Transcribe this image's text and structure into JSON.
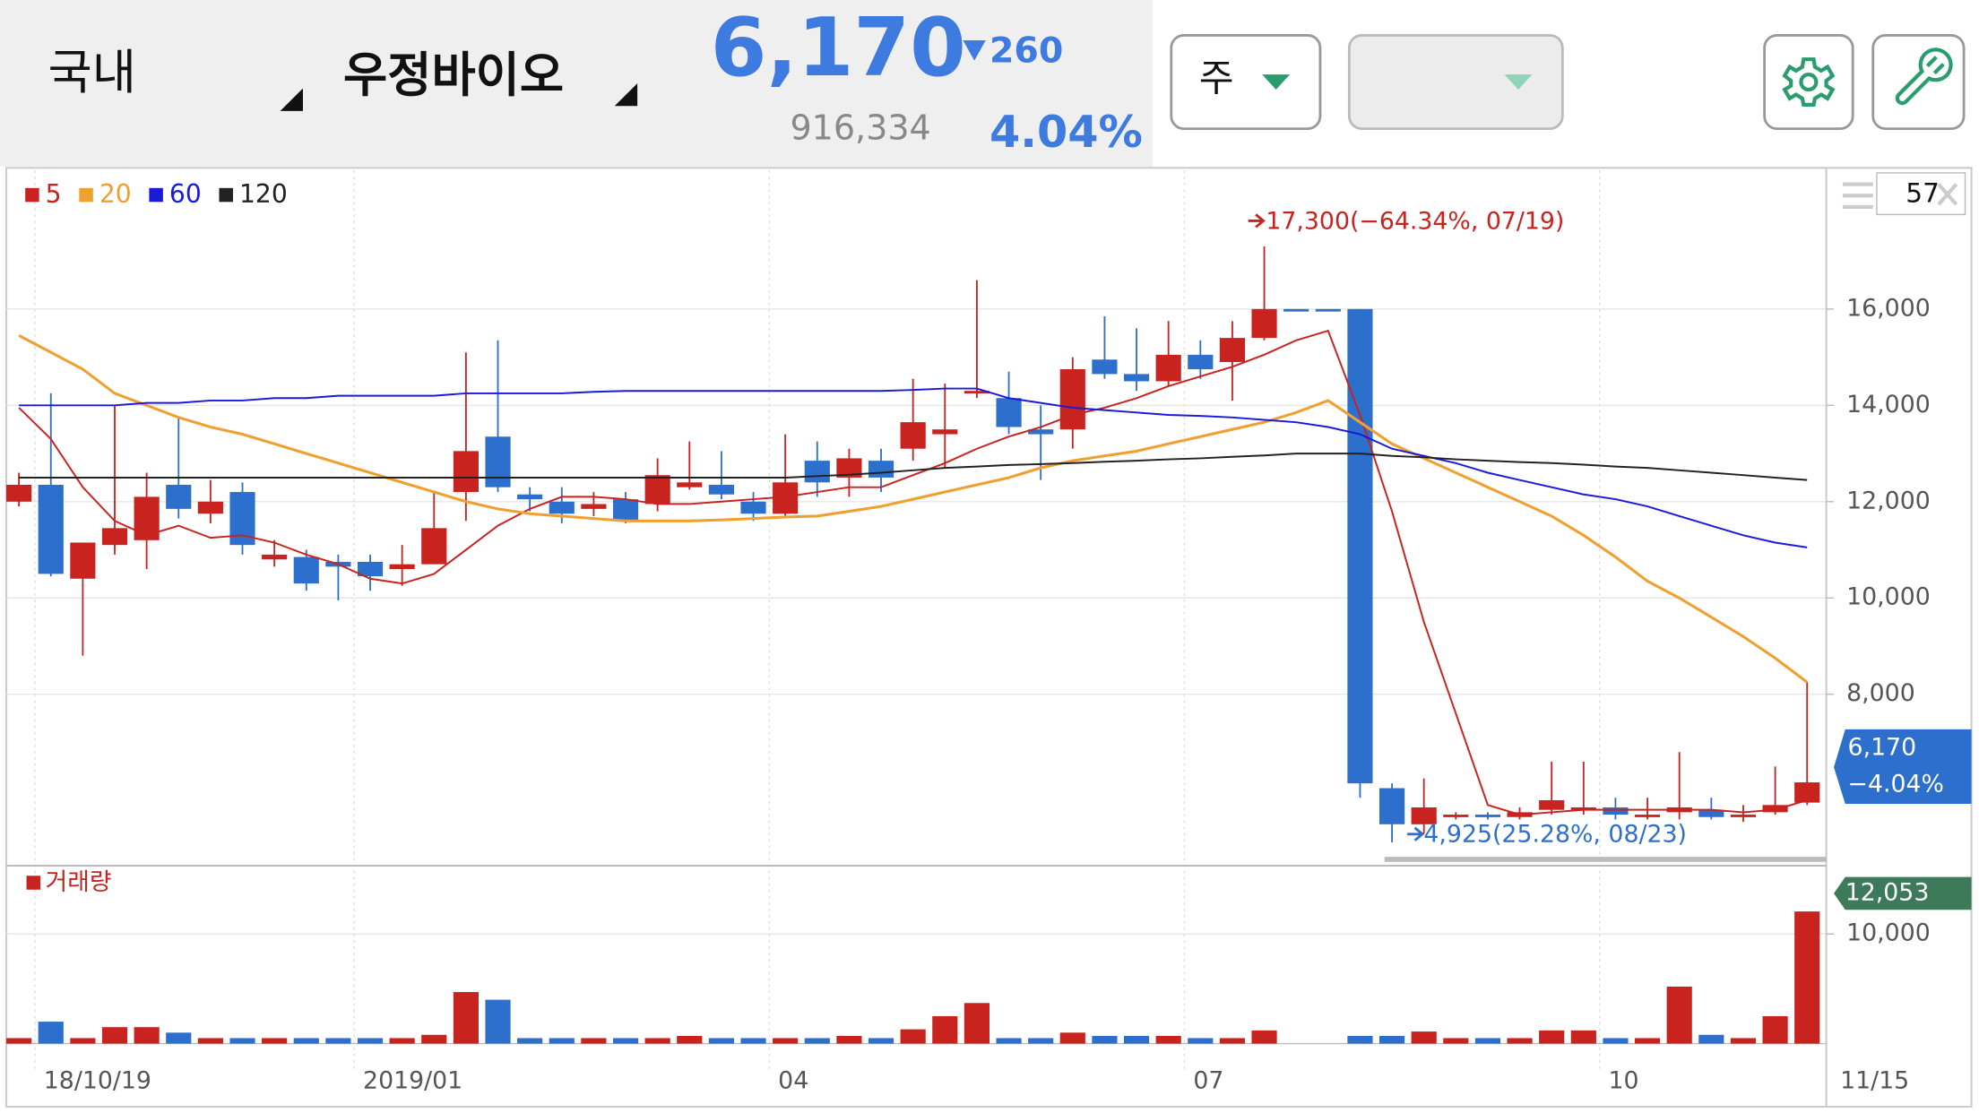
{
  "header": {
    "market": "국내",
    "stock_name": "우정바이오",
    "price": "6,170",
    "change": "260",
    "volume": "916,334",
    "change_pct": "4.04%"
  },
  "toolbar": {
    "period": "주"
  },
  "chart_data": [
    {
      "type": "candlestick",
      "categories": [
        null,
        "18/10/19",
        null,
        null,
        null,
        null,
        null,
        null,
        null,
        null,
        null,
        "2019/01",
        null,
        null,
        null,
        null,
        null,
        null,
        null,
        null,
        null,
        null,
        null,
        null,
        "04",
        null,
        null,
        null,
        null,
        null,
        null,
        null,
        null,
        null,
        null,
        null,
        null,
        "07",
        null,
        null,
        null,
        null,
        null,
        null,
        null,
        null,
        null,
        null,
        null,
        null,
        "10",
        null,
        null,
        null,
        null,
        null,
        "11/15"
      ],
      "open": [
        12000,
        12350,
        10400,
        11100,
        11200,
        12350,
        11750,
        12200,
        10800,
        10850,
        10750,
        10750,
        10600,
        10700,
        12200,
        13350,
        12150,
        12000,
        11850,
        12050,
        11950,
        12300,
        12350,
        12000,
        11750,
        12850,
        12500,
        12850,
        13100,
        13400,
        14250,
        14150,
        13500,
        13500,
        14950,
        14650,
        14500,
        15050,
        14900,
        15400,
        16000,
        16000,
        16000,
        6050,
        5300,
        5450,
        5500,
        5450,
        5600,
        5600,
        5650,
        5450,
        5550,
        5600,
        5450,
        5550,
        5750
      ],
      "high": [
        12600,
        14250,
        11150,
        14000,
        12600,
        13750,
        12450,
        12400,
        11200,
        11000,
        10900,
        10900,
        11100,
        12200,
        15100,
        15350,
        12300,
        12300,
        12200,
        12200,
        12900,
        13250,
        13050,
        12200,
        13400,
        13250,
        13100,
        13100,
        14550,
        14450,
        16600,
        14700,
        14000,
        15000,
        15850,
        15600,
        15750,
        15350,
        15750,
        17300,
        16000,
        16000,
        16000,
        6150,
        6250,
        5550,
        5550,
        5650,
        6600,
        6600,
        5850,
        5850,
        6800,
        5850,
        5700,
        6500,
        8250
      ],
      "low": [
        11900,
        10450,
        8800,
        10900,
        10600,
        11650,
        11550,
        10900,
        10650,
        10150,
        9950,
        10150,
        10250,
        10700,
        11600,
        12200,
        11800,
        11550,
        11700,
        11550,
        11800,
        12250,
        12050,
        11600,
        11700,
        12100,
        12100,
        12200,
        12850,
        12700,
        14150,
        13400,
        12450,
        13100,
        14550,
        14300,
        14400,
        14550,
        14100,
        15350,
        16000,
        16000,
        5850,
        4925,
        5100,
        5400,
        5400,
        5400,
        5500,
        5500,
        5400,
        5400,
        5400,
        5400,
        5350,
        5500,
        5700
      ],
      "close": [
        12350,
        10500,
        11150,
        11450,
        12100,
        11850,
        12000,
        11100,
        10900,
        10300,
        10650,
        10450,
        10700,
        11450,
        13050,
        12300,
        12050,
        11750,
        11950,
        11600,
        12550,
        12400,
        12150,
        11750,
        12400,
        12400,
        12900,
        12500,
        13650,
        13500,
        14300,
        13550,
        13400,
        14750,
        14650,
        14500,
        15050,
        14750,
        15400,
        16000,
        16000,
        16000,
        6150,
        5300,
        5650,
        5500,
        5450,
        5550,
        5800,
        5650,
        5500,
        5500,
        5650,
        5450,
        5500,
        5700,
        6170
      ],
      "up_color": "#c8231e",
      "down_color": "#2d6fcc",
      "series": [
        {
          "name": "5",
          "color": "#c8231e",
          "values": [
            13950,
            13300,
            12300,
            11600,
            11300,
            11500,
            11250,
            11300,
            11150,
            10900,
            10700,
            10400,
            10300,
            10500,
            11000,
            11500,
            11850,
            12100,
            12100,
            12050,
            11950,
            11950,
            12000,
            12050,
            12100,
            12200,
            12300,
            12300,
            12550,
            12800,
            13100,
            13350,
            13550,
            13800,
            13950,
            14150,
            14400,
            14600,
            14800,
            15050,
            15350,
            15550,
            13800,
            11800,
            9500,
            7600,
            5700,
            5500,
            5550,
            5600,
            5600,
            5600,
            5600,
            5600,
            5550,
            5600,
            5800
          ]
        },
        {
          "name": "20",
          "color": "#f0a030",
          "values": [
            15450,
            15100,
            14750,
            14250,
            14000,
            13750,
            13550,
            13400,
            13200,
            13000,
            12800,
            12600,
            12400,
            12200,
            12000,
            11850,
            11750,
            11700,
            11650,
            11600,
            11600,
            11600,
            11620,
            11650,
            11680,
            11700,
            11800,
            11900,
            12050,
            12200,
            12350,
            12500,
            12700,
            12850,
            12950,
            13050,
            13200,
            13350,
            13500,
            13650,
            13850,
            14100,
            13650,
            13200,
            12900,
            12600,
            12300,
            12000,
            11700,
            11300,
            10850,
            10350,
            10000,
            9600,
            9200,
            8750,
            8250
          ]
        },
        {
          "name": "60",
          "color": "#1a1adb",
          "values": [
            14000,
            14000,
            14000,
            14000,
            14050,
            14050,
            14100,
            14100,
            14150,
            14150,
            14200,
            14200,
            14200,
            14200,
            14250,
            14250,
            14250,
            14250,
            14280,
            14300,
            14300,
            14300,
            14300,
            14300,
            14300,
            14300,
            14300,
            14300,
            14320,
            14350,
            14350,
            14150,
            14050,
            13950,
            13900,
            13850,
            13800,
            13780,
            13750,
            13700,
            13650,
            13550,
            13400,
            13100,
            12950,
            12800,
            12600,
            12450,
            12300,
            12150,
            12050,
            11900,
            11700,
            11500,
            11300,
            11150,
            11050
          ]
        },
        {
          "name": "120",
          "color": "#222222",
          "values": [
            12500,
            12500,
            12500,
            12500,
            12500,
            12500,
            12500,
            12500,
            12500,
            12500,
            12500,
            12500,
            12500,
            12500,
            12500,
            12500,
            12500,
            12500,
            12500,
            12500,
            12500,
            12500,
            12500,
            12500,
            12500,
            12530,
            12560,
            12600,
            12650,
            12700,
            12730,
            12760,
            12780,
            12800,
            12830,
            12850,
            12880,
            12900,
            12930,
            12960,
            13000,
            13000,
            13000,
            12950,
            12920,
            12880,
            12850,
            12820,
            12800,
            12770,
            12730,
            12700,
            12650,
            12600,
            12550,
            12500,
            12450
          ]
        }
      ],
      "ylim": [
        4650,
        18880
      ],
      "yticks": [
        {
          "value": 8000,
          "label": "8,000"
        },
        {
          "value": 10000,
          "label": "10,000"
        },
        {
          "value": 12000,
          "label": "12,000"
        },
        {
          "value": 14000,
          "label": "14,000"
        },
        {
          "value": 16000,
          "label": "16,000"
        }
      ],
      "grid": true,
      "high_annotation": "17,300(−64.34%, 07/19)",
      "low_annotation": "4,925(25.28%, 08/23)",
      "last_price_label": "6,170",
      "last_change_label": "−4.04%",
      "bar_count": 57
    },
    {
      "type": "bar",
      "title": "거래량",
      "title_color": "#c8231e",
      "values": [
        500,
        2000,
        500,
        1500,
        1500,
        1000,
        500,
        500,
        500,
        500,
        500,
        500,
        500,
        800,
        4700,
        4000,
        500,
        500,
        500,
        500,
        500,
        700,
        500,
        500,
        500,
        500,
        700,
        500,
        1300,
        2500,
        3700,
        500,
        500,
        1000,
        700,
        700,
        700,
        500,
        500,
        1200,
        null,
        null,
        700,
        700,
        1100,
        500,
        500,
        500,
        1200,
        1200,
        500,
        500,
        5200,
        800,
        500,
        2500,
        12053
      ],
      "last_value_label": "12,053",
      "ylim": [
        0,
        16000
      ],
      "yticks": [
        {
          "value": 10000,
          "label": "10,000"
        }
      ],
      "grid": true
    }
  ]
}
